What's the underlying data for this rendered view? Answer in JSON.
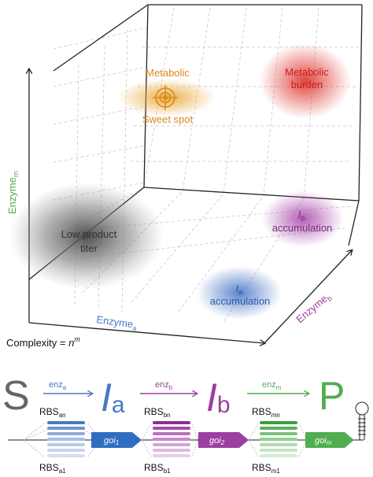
{
  "colors": {
    "enzyme_a": "#4a78c2",
    "enzyme_b": "#9b3fa0",
    "enzyme_m": "#4fae4f",
    "sweet_spot": "#e8a52e",
    "burden": "#e03a34",
    "low_titer": "#555555",
    "text_dark": "#333333"
  },
  "axes": {
    "x_label": "Enzyme",
    "x_sub": "a",
    "y_label": "Enzyme",
    "y_sub": "m",
    "z_label": "Enzyme",
    "z_sub": "b"
  },
  "regions": {
    "sweet_spot_line1": "Metabolic",
    "sweet_spot_line2": "Sweet spot",
    "burden_line1": "Metabolic",
    "burden_line2": "burden",
    "ib_letter": "I",
    "ib_sub": "b",
    "ib_word": "accumulation",
    "low_titer_line1": "Low product",
    "low_titer_line2": "titer",
    "ia_letter": "I",
    "ia_sub": "a",
    "ia_word": "accumulation"
  },
  "complexity": {
    "label": "Complexity = ",
    "base": "n",
    "exponent": "m"
  },
  "pathway": {
    "substrate": "S",
    "product": "P",
    "intermediate_letter": "I",
    "ia_sub": "a",
    "ib_sub": "b",
    "enz_label": "enz",
    "enz_a_sub": "a",
    "enz_b_sub": "b",
    "enz_m_sub": "m"
  },
  "construct": {
    "rbs_label": "RBS",
    "rbs_a_top_sub": "an",
    "rbs_a_bot_sub": "a1",
    "rbs_b_top_sub": "bn",
    "rbs_b_bot_sub": "b1",
    "rbs_m_top_sub": "mn",
    "rbs_m_bot_sub": "m1",
    "goi_label": "goi",
    "goi_1_sub": "1",
    "goi_2_sub": "2",
    "goi_m_sub": "m"
  }
}
